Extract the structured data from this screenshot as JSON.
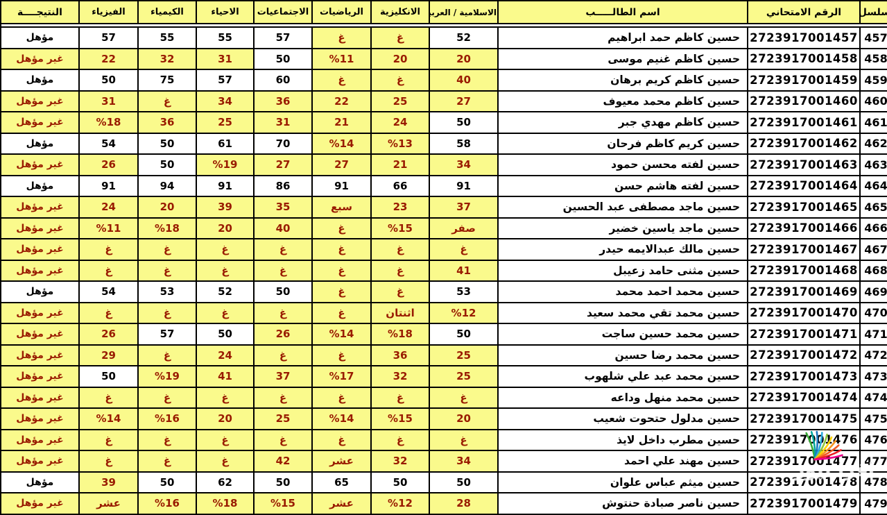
{
  "table": {
    "headers": {
      "serial": "سلسل",
      "exam_number": "الرقم الامتحاني",
      "student_name": "اسم الطالـــــب",
      "subjects": [
        "الاسلامية / العربية",
        "الانكليزية",
        "الرياضيات",
        "الاجتماعيات",
        "الاحياء",
        "الكيمياء",
        "الفيزياء"
      ],
      "result": "النتيجــــة"
    },
    "result_labels": {
      "qualified": "مؤهل",
      "not_qualified": "غير مؤهل"
    },
    "colors": {
      "highlight_yellow": "#FAFA8C",
      "fail_red": "#991B00",
      "pass_black": "#000000",
      "border": "#000000"
    },
    "rows": [
      {
        "serial": "457",
        "exam_number": "2723917001457",
        "name": "حسين كاظم حمد ابراهيم",
        "grades": [
          {
            "v": "52",
            "pass": true
          },
          {
            "v": "غ",
            "pass": false
          },
          {
            "v": "غ",
            "pass": false
          },
          {
            "v": "57",
            "pass": true
          },
          {
            "v": "55",
            "pass": true
          },
          {
            "v": "55",
            "pass": true
          },
          {
            "v": "57",
            "pass": true
          }
        ],
        "result": "مؤهل",
        "qualified": true
      },
      {
        "serial": "458",
        "exam_number": "2723917001458",
        "name": "حسين كاظم غنيم موسى",
        "grades": [
          {
            "v": "20",
            "pass": false
          },
          {
            "v": "20",
            "pass": false
          },
          {
            "v": "%11",
            "pass": false
          },
          {
            "v": "50",
            "pass": true
          },
          {
            "v": "31",
            "pass": false
          },
          {
            "v": "32",
            "pass": false
          },
          {
            "v": "22",
            "pass": false
          }
        ],
        "result": "غير مؤهل",
        "qualified": false
      },
      {
        "serial": "459",
        "exam_number": "2723917001459",
        "name": "حسين كاظم كريم برهان",
        "grades": [
          {
            "v": "40",
            "pass": false
          },
          {
            "v": "غ",
            "pass": false
          },
          {
            "v": "غ",
            "pass": false
          },
          {
            "v": "60",
            "pass": true
          },
          {
            "v": "57",
            "pass": true
          },
          {
            "v": "75",
            "pass": true
          },
          {
            "v": "50",
            "pass": true
          }
        ],
        "result": "مؤهل",
        "qualified": true
      },
      {
        "serial": "460",
        "exam_number": "2723917001460",
        "name": "حسين كاظم محمد معيوف",
        "grades": [
          {
            "v": "27",
            "pass": false
          },
          {
            "v": "25",
            "pass": false
          },
          {
            "v": "22",
            "pass": false
          },
          {
            "v": "36",
            "pass": false
          },
          {
            "v": "34",
            "pass": false
          },
          {
            "v": "غ",
            "pass": false
          },
          {
            "v": "31",
            "pass": false
          }
        ],
        "result": "غير مؤهل",
        "qualified": false
      },
      {
        "serial": "461",
        "exam_number": "2723917001461",
        "name": "حسين كاظم مهدي جبر",
        "grades": [
          {
            "v": "50",
            "pass": true
          },
          {
            "v": "24",
            "pass": false
          },
          {
            "v": "21",
            "pass": false
          },
          {
            "v": "31",
            "pass": false
          },
          {
            "v": "25",
            "pass": false
          },
          {
            "v": "36",
            "pass": false
          },
          {
            "v": "%18",
            "pass": false
          }
        ],
        "result": "غير مؤهل",
        "qualified": false
      },
      {
        "serial": "462",
        "exam_number": "2723917001462",
        "name": "حسين كريم كاظم فرحان",
        "grades": [
          {
            "v": "58",
            "pass": true
          },
          {
            "v": "%13",
            "pass": false
          },
          {
            "v": "%14",
            "pass": false
          },
          {
            "v": "70",
            "pass": true
          },
          {
            "v": "61",
            "pass": true
          },
          {
            "v": "50",
            "pass": true
          },
          {
            "v": "54",
            "pass": true
          }
        ],
        "result": "مؤهل",
        "qualified": true
      },
      {
        "serial": "463",
        "exam_number": "2723917001463",
        "name": "حسين لفته محسن حمود",
        "grades": [
          {
            "v": "34",
            "pass": false
          },
          {
            "v": "21",
            "pass": false
          },
          {
            "v": "27",
            "pass": false
          },
          {
            "v": "27",
            "pass": false
          },
          {
            "v": "%19",
            "pass": false
          },
          {
            "v": "50",
            "pass": true
          },
          {
            "v": "26",
            "pass": false
          }
        ],
        "result": "غير مؤهل",
        "qualified": false
      },
      {
        "serial": "464",
        "exam_number": "2723917001464",
        "name": "حسين لفته هاشم حسن",
        "grades": [
          {
            "v": "91",
            "pass": true
          },
          {
            "v": "66",
            "pass": true
          },
          {
            "v": "91",
            "pass": true
          },
          {
            "v": "86",
            "pass": true
          },
          {
            "v": "91",
            "pass": true
          },
          {
            "v": "94",
            "pass": true
          },
          {
            "v": "91",
            "pass": true
          }
        ],
        "result": "مؤهل",
        "qualified": true
      },
      {
        "serial": "465",
        "exam_number": "2723917001465",
        "name": "حسين ماجد مصطفى عبد الحسين",
        "grades": [
          {
            "v": "37",
            "pass": false
          },
          {
            "v": "23",
            "pass": false
          },
          {
            "v": "سبع",
            "pass": false
          },
          {
            "v": "35",
            "pass": false
          },
          {
            "v": "39",
            "pass": false
          },
          {
            "v": "20",
            "pass": false
          },
          {
            "v": "24",
            "pass": false
          }
        ],
        "result": "غير مؤهل",
        "qualified": false
      },
      {
        "serial": "466",
        "exam_number": "2723917001466",
        "name": "حسين ماجد ياسين خضير",
        "grades": [
          {
            "v": "صفر",
            "pass": false
          },
          {
            "v": "%15",
            "pass": false
          },
          {
            "v": "غ",
            "pass": false
          },
          {
            "v": "40",
            "pass": false
          },
          {
            "v": "20",
            "pass": false
          },
          {
            "v": "%18",
            "pass": false
          },
          {
            "v": "%11",
            "pass": false
          }
        ],
        "result": "غير مؤهل",
        "qualified": false
      },
      {
        "serial": "467",
        "exam_number": "2723917001467",
        "name": "حسين مالك عبدالايمه حيدر",
        "grades": [
          {
            "v": "غ",
            "pass": false
          },
          {
            "v": "غ",
            "pass": false
          },
          {
            "v": "غ",
            "pass": false
          },
          {
            "v": "غ",
            "pass": false
          },
          {
            "v": "غ",
            "pass": false
          },
          {
            "v": "غ",
            "pass": false
          },
          {
            "v": "غ",
            "pass": false
          }
        ],
        "result": "غير مؤهل",
        "qualified": false
      },
      {
        "serial": "468",
        "exam_number": "2723917001468",
        "name": "حسين مثنى حامد زعيبل",
        "grades": [
          {
            "v": "41",
            "pass": false
          },
          {
            "v": "غ",
            "pass": false
          },
          {
            "v": "غ",
            "pass": false
          },
          {
            "v": "غ",
            "pass": false
          },
          {
            "v": "غ",
            "pass": false
          },
          {
            "v": "غ",
            "pass": false
          },
          {
            "v": "غ",
            "pass": false
          }
        ],
        "result": "غير مؤهل",
        "qualified": false
      },
      {
        "serial": "469",
        "exam_number": "2723917001469",
        "name": "حسين محمد احمد محمد",
        "grades": [
          {
            "v": "53",
            "pass": true
          },
          {
            "v": "غ",
            "pass": false
          },
          {
            "v": "غ",
            "pass": false
          },
          {
            "v": "50",
            "pass": true
          },
          {
            "v": "52",
            "pass": true
          },
          {
            "v": "53",
            "pass": true
          },
          {
            "v": "54",
            "pass": true
          }
        ],
        "result": "مؤهل",
        "qualified": true
      },
      {
        "serial": "470",
        "exam_number": "2723917001470",
        "name": "حسين محمد تقي محمد سعيد",
        "grades": [
          {
            "v": "%12",
            "pass": false
          },
          {
            "v": "اثنتان",
            "pass": false
          },
          {
            "v": "غ",
            "pass": false
          },
          {
            "v": "غ",
            "pass": false
          },
          {
            "v": "غ",
            "pass": false
          },
          {
            "v": "غ",
            "pass": false
          },
          {
            "v": "غ",
            "pass": false
          }
        ],
        "result": "غير مؤهل",
        "qualified": false
      },
      {
        "serial": "471",
        "exam_number": "2723917001471",
        "name": "حسين محمد حسين ساجت",
        "grades": [
          {
            "v": "50",
            "pass": true
          },
          {
            "v": "%18",
            "pass": false
          },
          {
            "v": "%14",
            "pass": false
          },
          {
            "v": "26",
            "pass": false
          },
          {
            "v": "50",
            "pass": true
          },
          {
            "v": "57",
            "pass": true
          },
          {
            "v": "26",
            "pass": false
          }
        ],
        "result": "غير مؤهل",
        "qualified": false
      },
      {
        "serial": "472",
        "exam_number": "2723917001472",
        "name": "حسين محمد رضا حسين",
        "grades": [
          {
            "v": "25",
            "pass": false
          },
          {
            "v": "36",
            "pass": false
          },
          {
            "v": "غ",
            "pass": false
          },
          {
            "v": "غ",
            "pass": false
          },
          {
            "v": "24",
            "pass": false
          },
          {
            "v": "غ",
            "pass": false
          },
          {
            "v": "29",
            "pass": false
          }
        ],
        "result": "غير مؤهل",
        "qualified": false
      },
      {
        "serial": "473",
        "exam_number": "2723917001473",
        "name": "حسين محمد عبد علي شلهوب",
        "grades": [
          {
            "v": "25",
            "pass": false
          },
          {
            "v": "32",
            "pass": false
          },
          {
            "v": "%17",
            "pass": false
          },
          {
            "v": "37",
            "pass": false
          },
          {
            "v": "41",
            "pass": false
          },
          {
            "v": "%19",
            "pass": false
          },
          {
            "v": "50",
            "pass": true
          }
        ],
        "result": "غير مؤهل",
        "qualified": false
      },
      {
        "serial": "474",
        "exam_number": "2723917001474",
        "name": "حسين محمد منهل وداعه",
        "grades": [
          {
            "v": "غ",
            "pass": false
          },
          {
            "v": "غ",
            "pass": false
          },
          {
            "v": "غ",
            "pass": false
          },
          {
            "v": "غ",
            "pass": false
          },
          {
            "v": "غ",
            "pass": false
          },
          {
            "v": "غ",
            "pass": false
          },
          {
            "v": "غ",
            "pass": false
          }
        ],
        "result": "غير مؤهل",
        "qualified": false
      },
      {
        "serial": "475",
        "exam_number": "2723917001475",
        "name": "حسين مدلول حتحوت شعيب",
        "grades": [
          {
            "v": "20",
            "pass": false
          },
          {
            "v": "%15",
            "pass": false
          },
          {
            "v": "%14",
            "pass": false
          },
          {
            "v": "25",
            "pass": false
          },
          {
            "v": "20",
            "pass": false
          },
          {
            "v": "%16",
            "pass": false
          },
          {
            "v": "%14",
            "pass": false
          }
        ],
        "result": "غير مؤهل",
        "qualified": false
      },
      {
        "serial": "476",
        "exam_number": "2723917001476",
        "name": "حسين مطرب داخل لايذ",
        "grades": [
          {
            "v": "غ",
            "pass": false
          },
          {
            "v": "غ",
            "pass": false
          },
          {
            "v": "غ",
            "pass": false
          },
          {
            "v": "غ",
            "pass": false
          },
          {
            "v": "غ",
            "pass": false
          },
          {
            "v": "غ",
            "pass": false
          },
          {
            "v": "غ",
            "pass": false
          }
        ],
        "result": "غير مؤهل",
        "qualified": false
      },
      {
        "serial": "477",
        "exam_number": "2723917001477",
        "name": "حسين مهند علي احمد",
        "grades": [
          {
            "v": "34",
            "pass": false
          },
          {
            "v": "32",
            "pass": false
          },
          {
            "v": "عشر",
            "pass": false
          },
          {
            "v": "42",
            "pass": false
          },
          {
            "v": "غ",
            "pass": false
          },
          {
            "v": "غ",
            "pass": false
          },
          {
            "v": "غ",
            "pass": false
          }
        ],
        "result": "غير مؤهل",
        "qualified": false
      },
      {
        "serial": "478",
        "exam_number": "2723917001478",
        "name": "حسين ميثم عباس علوان",
        "grades": [
          {
            "v": "50",
            "pass": true
          },
          {
            "v": "50",
            "pass": true
          },
          {
            "v": "65",
            "pass": true
          },
          {
            "v": "50",
            "pass": true
          },
          {
            "v": "62",
            "pass": true
          },
          {
            "v": "50",
            "pass": true
          },
          {
            "v": "39",
            "pass": false
          }
        ],
        "result": "مؤهل",
        "qualified": true
      },
      {
        "serial": "479",
        "exam_number": "2723917001479",
        "name": "حسين ناصر صبادة حنتوش",
        "grades": [
          {
            "v": "28",
            "pass": false
          },
          {
            "v": "%12",
            "pass": false
          },
          {
            "v": "عشر",
            "pass": false
          },
          {
            "v": "%15",
            "pass": false
          },
          {
            "v": "%18",
            "pass": false
          },
          {
            "v": "%16",
            "pass": false
          },
          {
            "v": "عشر",
            "pass": false
          }
        ],
        "result": "غير مؤهل",
        "qualified": false
      }
    ]
  },
  "watermark": {
    "text": "اقرأ نيوز",
    "fan_colors": [
      "#3AAA35",
      "#00A99D",
      "#1B75BC",
      "#27AAE1",
      "#8DC63F",
      "#FFD400",
      "#F7941D",
      "#F15A24",
      "#ED1C24",
      "#EC008C"
    ]
  }
}
